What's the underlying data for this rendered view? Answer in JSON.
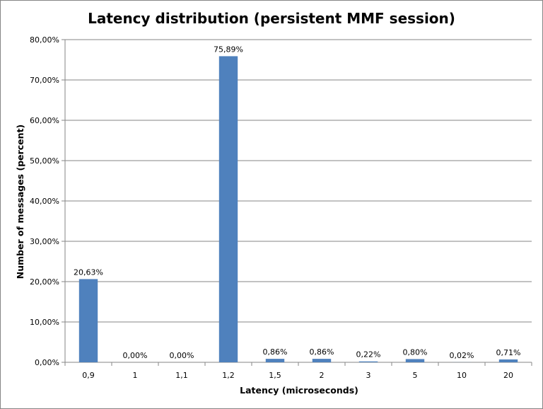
{
  "chart_data": {
    "type": "bar",
    "title": "Latency distribution (persistent MMF session)",
    "xlabel": "Latency (microseconds)",
    "ylabel": "Number of messages (percent)",
    "categories": [
      "0,9",
      "1",
      "1,1",
      "1,2",
      "1,5",
      "2",
      "3",
      "5",
      "10",
      "20"
    ],
    "values": [
      20.63,
      0.0,
      0.0,
      75.89,
      0.86,
      0.86,
      0.22,
      0.8,
      0.02,
      0.71
    ],
    "data_labels": [
      "20,63%",
      "0,00%",
      "0,00%",
      "75,89%",
      "0,86%",
      "0,86%",
      "0,22%",
      "0,80%",
      "0,02%",
      "0,71%"
    ],
    "ylim": [
      0,
      80
    ],
    "yticks": [
      0,
      10,
      20,
      30,
      40,
      50,
      60,
      70,
      80
    ],
    "ytick_labels": [
      "0,00%",
      "10,00%",
      "20,00%",
      "30,00%",
      "40,00%",
      "50,00%",
      "60,00%",
      "70,00%",
      "80,00%"
    ],
    "grid": true,
    "legend": "none",
    "bar_color": "#4F81BD",
    "grid_color": "#868686"
  }
}
